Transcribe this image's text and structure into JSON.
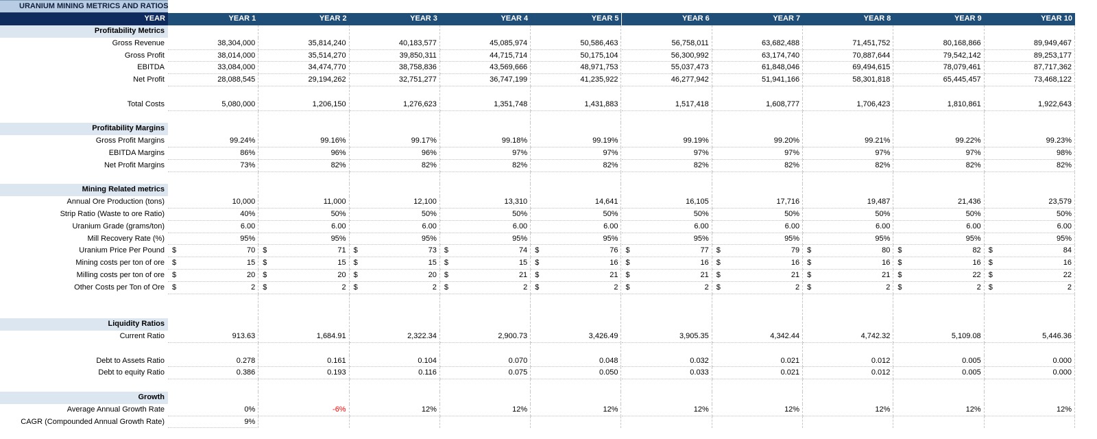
{
  "header": {
    "title": "URANIUM MINING METRICS AND RATIOS"
  },
  "table": {
    "columns": [
      "YEAR",
      "YEAR 1",
      "YEAR 2",
      "YEAR 3",
      "YEAR 4",
      "YEAR 5",
      "YEAR 6",
      "YEAR 7",
      "YEAR 8",
      "YEAR 9",
      "YEAR 10"
    ],
    "rows": [
      {
        "section": "Profitability Metrics"
      },
      {
        "label": "Gross Revenue",
        "values": [
          "38,304,000",
          "35,814,240",
          "40,183,577",
          "45,085,974",
          "50,586,463",
          "56,758,011",
          "63,682,488",
          "71,451,752",
          "80,168,866",
          "89,949,467"
        ]
      },
      {
        "label": "Gross Profit",
        "values": [
          "38,014,000",
          "35,514,270",
          "39,850,311",
          "44,715,714",
          "50,175,104",
          "56,300,992",
          "63,174,740",
          "70,887,644",
          "79,542,142",
          "89,253,177"
        ]
      },
      {
        "label": "EBITDA",
        "values": [
          "33,084,000",
          "34,474,770",
          "38,758,836",
          "43,569,666",
          "48,971,753",
          "55,037,473",
          "61,848,046",
          "69,494,615",
          "78,079,461",
          "87,717,362"
        ]
      },
      {
        "label": "Net Profit",
        "values": [
          "28,088,545",
          "29,194,262",
          "32,751,277",
          "36,747,199",
          "41,235,922",
          "46,277,942",
          "51,941,166",
          "58,301,818",
          "65,445,457",
          "73,468,122"
        ]
      },
      null,
      {
        "label": "Total Costs",
        "values": [
          "5,080,000",
          "1,206,150",
          "1,276,623",
          "1,351,748",
          "1,431,883",
          "1,517,418",
          "1,608,777",
          "1,706,423",
          "1,810,861",
          "1,922,643"
        ]
      },
      null,
      {
        "section": "Profitability Margins"
      },
      {
        "label": "Gross Profit Margins",
        "values": [
          "99.24%",
          "99.16%",
          "99.17%",
          "99.18%",
          "99.19%",
          "99.19%",
          "99.20%",
          "99.21%",
          "99.22%",
          "99.23%"
        ]
      },
      {
        "label": "EBITDA Margins",
        "values": [
          "86%",
          "96%",
          "96%",
          "97%",
          "97%",
          "97%",
          "97%",
          "97%",
          "97%",
          "98%"
        ]
      },
      {
        "label": "Net Profit Margins",
        "values": [
          "73%",
          "82%",
          "82%",
          "82%",
          "82%",
          "82%",
          "82%",
          "82%",
          "82%",
          "82%"
        ]
      },
      null,
      {
        "section": "Mining Related metrics"
      },
      {
        "label": "Annual Ore Production (tons)",
        "values": [
          "10,000",
          "11,000",
          "12,100",
          "13,310",
          "14,641",
          "16,105",
          "17,716",
          "19,487",
          "21,436",
          "23,579"
        ]
      },
      {
        "label": "Strip Ratio (Waste to ore Ratio)",
        "values": [
          "40%",
          "50%",
          "50%",
          "50%",
          "50%",
          "50%",
          "50%",
          "50%",
          "50%",
          "50%"
        ]
      },
      {
        "label": "Uranium Grade (grams/ton)",
        "values": [
          "6.00",
          "6.00",
          "6.00",
          "6.00",
          "6.00",
          "6.00",
          "6.00",
          "6.00",
          "6.00",
          "6.00"
        ]
      },
      {
        "label": "Mill Recovery Rate (%)",
        "values": [
          "95%",
          "95%",
          "95%",
          "95%",
          "95%",
          "95%",
          "95%",
          "95%",
          "95%",
          "95%"
        ]
      },
      {
        "label": "Uranium Price Per Pound",
        "prefix": "$",
        "values": [
          "70",
          "71",
          "73",
          "74",
          "76",
          "77",
          "79",
          "80",
          "82",
          "84"
        ]
      },
      {
        "label": "Mining costs per ton of ore",
        "prefix": "$",
        "values": [
          "15",
          "15",
          "15",
          "15",
          "16",
          "16",
          "16",
          "16",
          "16",
          "16"
        ]
      },
      {
        "label": "Milling costs per ton of ore",
        "prefix": "$",
        "values": [
          "20",
          "20",
          "20",
          "21",
          "21",
          "21",
          "21",
          "21",
          "22",
          "22"
        ]
      },
      {
        "label": "Other Costs per Ton of Ore",
        "prefix": "$",
        "values": [
          "2",
          "2",
          "2",
          "2",
          "2",
          "2",
          "2",
          "2",
          "2",
          "2"
        ]
      },
      null,
      null,
      {
        "section": "Liquidity Ratios"
      },
      {
        "label": "Current Ratio",
        "values": [
          "913.63",
          "1,684.91",
          "2,322.34",
          "2,900.73",
          "3,426.49",
          "3,905.35",
          "4,342.44",
          "4,742.32",
          "5,109.08",
          "5,446.36"
        ]
      },
      null,
      {
        "label": "Debt to Assets Ratio",
        "values": [
          "0.278",
          "0.161",
          "0.104",
          "0.070",
          "0.048",
          "0.032",
          "0.021",
          "0.012",
          "0.005",
          "0.000"
        ]
      },
      {
        "label": "Debt to equity Ratio",
        "values": [
          "0.386",
          "0.193",
          "0.116",
          "0.075",
          "0.050",
          "0.033",
          "0.021",
          "0.012",
          "0.005",
          "0.000"
        ]
      },
      null,
      {
        "section": "Growth"
      },
      {
        "label": "Average Annual Growth Rate",
        "values": [
          "0%",
          {
            "text": "-6%",
            "color": "#ff0000"
          },
          "12%",
          "12%",
          "12%",
          "12%",
          "12%",
          "12%",
          "12%",
          "12%"
        ]
      },
      {
        "label": "CAGR (Compounded Annual Growth Rate)",
        "values": [
          "9%"
        ]
      }
    ]
  }
}
